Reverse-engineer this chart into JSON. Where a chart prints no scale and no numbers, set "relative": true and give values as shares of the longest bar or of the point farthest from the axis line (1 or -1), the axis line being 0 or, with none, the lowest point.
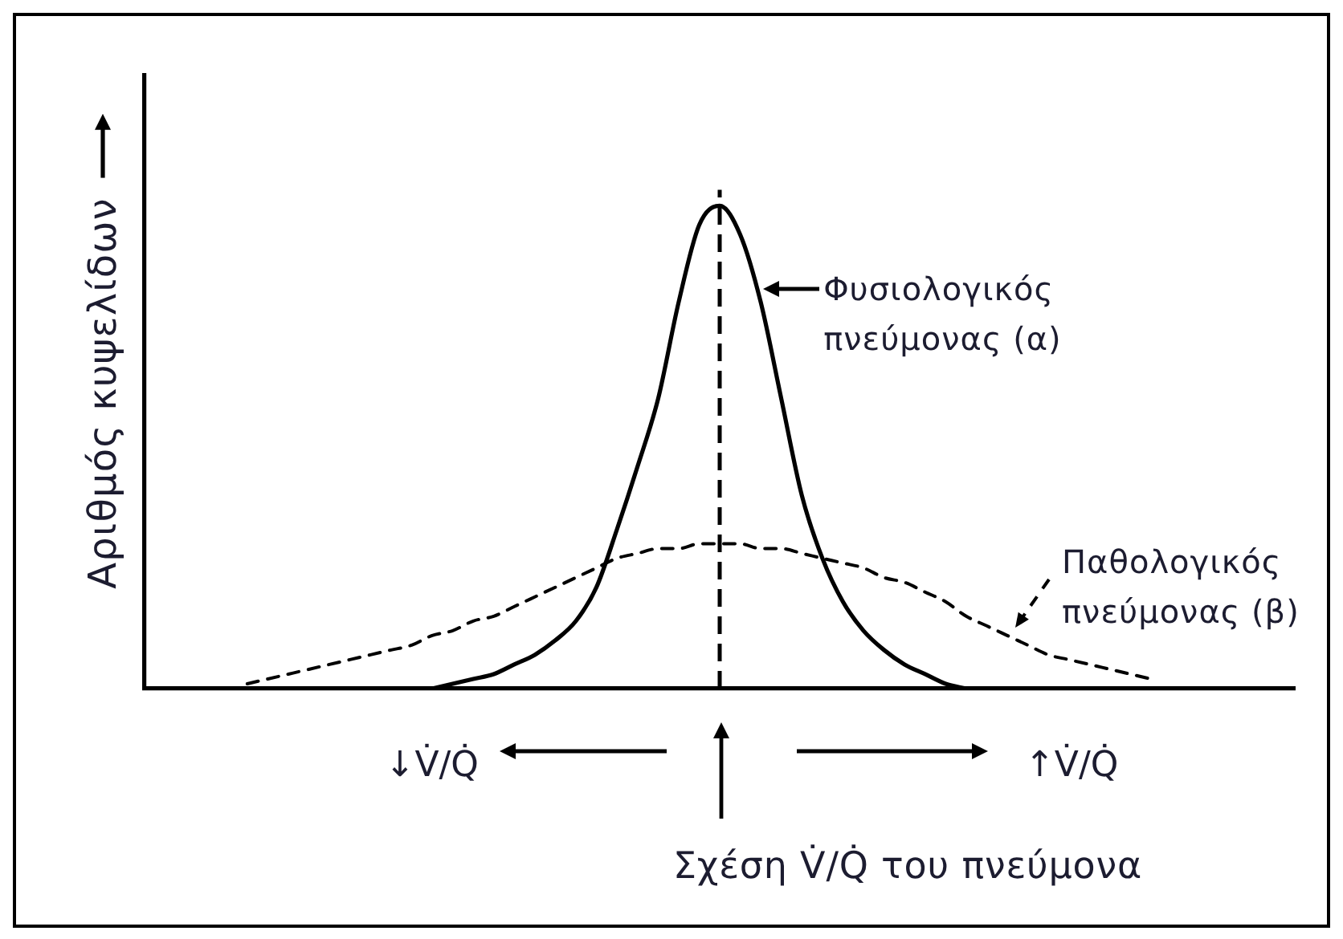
{
  "chart_data": {
    "type": "line",
    "relative": true,
    "ylabel": "Αριθμός κυψελίδων",
    "xlabel": "Σχέση V̇/Q̇ του πνεύμονα",
    "categories": [
      null,
      null,
      null,
      null,
      null,
      null,
      null,
      null,
      null,
      null,
      null,
      null,
      null,
      null,
      null,
      null,
      null,
      null,
      null,
      null,
      null,
      null,
      null,
      null,
      null,
      null,
      null,
      null,
      null,
      null,
      null,
      null,
      null,
      null,
      null,
      null,
      null,
      null,
      null,
      null,
      null,
      null,
      null,
      null,
      null,
      null,
      null,
      null,
      null,
      null,
      null,
      null,
      null,
      null,
      null,
      null,
      null
    ],
    "series": [
      {
        "name": "Φυσιολογικός πνεύμονας (α)",
        "color": "#000000",
        "line_style": "solid",
        "values": [
          null,
          null,
          null,
          null,
          null,
          null,
          null,
          null,
          null,
          null,
          null,
          null,
          null,
          null,
          0,
          0.01,
          0.02,
          0.03,
          0.05,
          0.07,
          0.1,
          0.14,
          0.21,
          0.33,
          0.46,
          0.6,
          0.8,
          0.96,
          1,
          0.94,
          0.8,
          0.6,
          0.4,
          0.27,
          0.18,
          0.12,
          0.08,
          0.05,
          0.03,
          0.01,
          0,
          null,
          null,
          null,
          null,
          null,
          null,
          null,
          null,
          null,
          null,
          null,
          null,
          null,
          null,
          null,
          null
        ]
      },
      {
        "name": "Παθολογικός πνεύμονας (β)",
        "color": "#000000",
        "line_style": "dashed",
        "values": [
          null,
          null,
          null,
          null,
          null,
          0.01,
          0.02,
          0.03,
          0.04,
          0.05,
          0.06,
          0.07,
          0.08,
          0.09,
          0.11,
          0.12,
          0.14,
          0.15,
          0.17,
          0.19,
          0.21,
          0.23,
          0.25,
          0.27,
          0.28,
          0.29,
          0.29,
          0.3,
          0.3,
          0.3,
          0.29,
          0.29,
          0.28,
          0.27,
          0.26,
          0.25,
          0.23,
          0.22,
          0.2,
          0.18,
          0.15,
          0.13,
          0.11,
          0.09,
          0.07,
          0.06,
          0.05,
          0.04,
          0.03,
          0.02,
          null,
          null,
          null,
          null,
          null,
          null,
          null
        ]
      }
    ],
    "annotations": [
      "↓V̇/Q̇",
      "↑V̇/Q̇"
    ],
    "legend": "right",
    "grid": false,
    "marker": "none",
    "tick_labels": false
  }
}
